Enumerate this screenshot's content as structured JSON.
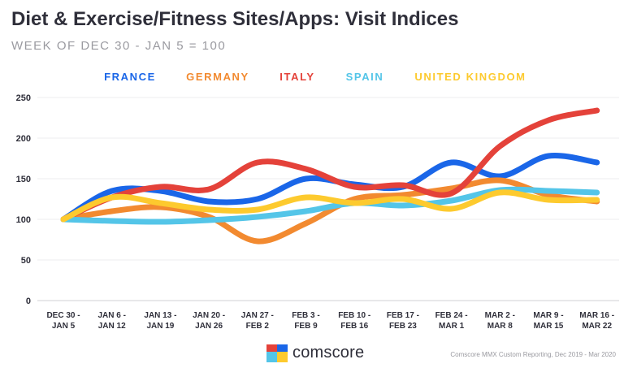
{
  "chart_data": {
    "type": "line",
    "title": "Diet & Exercise/Fitness Sites/Apps: Visit Indices",
    "subtitle": "WEEK OF DEC 30 - JAN 5 = 100",
    "xlabel": "",
    "ylabel": "",
    "ylim": [
      0,
      250
    ],
    "yticks": [
      0,
      50,
      100,
      150,
      200,
      250
    ],
    "grid": true,
    "legend_position": "top",
    "categories": [
      [
        "DEC 30 -",
        "JAN 5"
      ],
      [
        "JAN 6 -",
        "JAN 12"
      ],
      [
        "JAN 13 -",
        "JAN 19"
      ],
      [
        "JAN 20 -",
        "JAN 26"
      ],
      [
        "JAN 27 -",
        "FEB 2"
      ],
      [
        "FEB 3 -",
        "FEB 9"
      ],
      [
        "FEB 10 -",
        "FEB 16"
      ],
      [
        "FEB 17 -",
        "FEB 23"
      ],
      [
        "FEB 24 -",
        "MAR 1"
      ],
      [
        "MAR 2 -",
        "MAR 8"
      ],
      [
        "MAR 9 -",
        "MAR 15"
      ],
      [
        "MAR 16 -",
        "MAR 22"
      ]
    ],
    "series": [
      {
        "name": "FRANCE",
        "color": "#1a66e8",
        "values": [
          100,
          135,
          135,
          122,
          125,
          150,
          143,
          140,
          170,
          153,
          178,
          170
        ]
      },
      {
        "name": "GERMANY",
        "color": "#f28a30",
        "values": [
          100,
          110,
          115,
          103,
          73,
          95,
          125,
          130,
          138,
          148,
          130,
          122
        ]
      },
      {
        "name": "ITALY",
        "color": "#e4423a",
        "values": [
          100,
          127,
          140,
          137,
          170,
          162,
          140,
          142,
          132,
          190,
          222,
          234
        ]
      },
      {
        "name": "SPAIN",
        "color": "#54c5e8",
        "values": [
          100,
          98,
          97,
          99,
          103,
          110,
          120,
          117,
          123,
          136,
          135,
          133
        ]
      },
      {
        "name": "UNITED KINGDOM",
        "color": "#fdca2e",
        "values": [
          100,
          127,
          120,
          112,
          112,
          127,
          120,
          125,
          113,
          133,
          124,
          124
        ]
      }
    ]
  },
  "brand": {
    "name": "comscore",
    "logo_colors": [
      "#e4423a",
      "#1a66e8",
      "#54c5e8",
      "#fdca2e"
    ]
  },
  "source": "Comscore MMX Custom Reporting, Dec 2019 - Mar 2020"
}
